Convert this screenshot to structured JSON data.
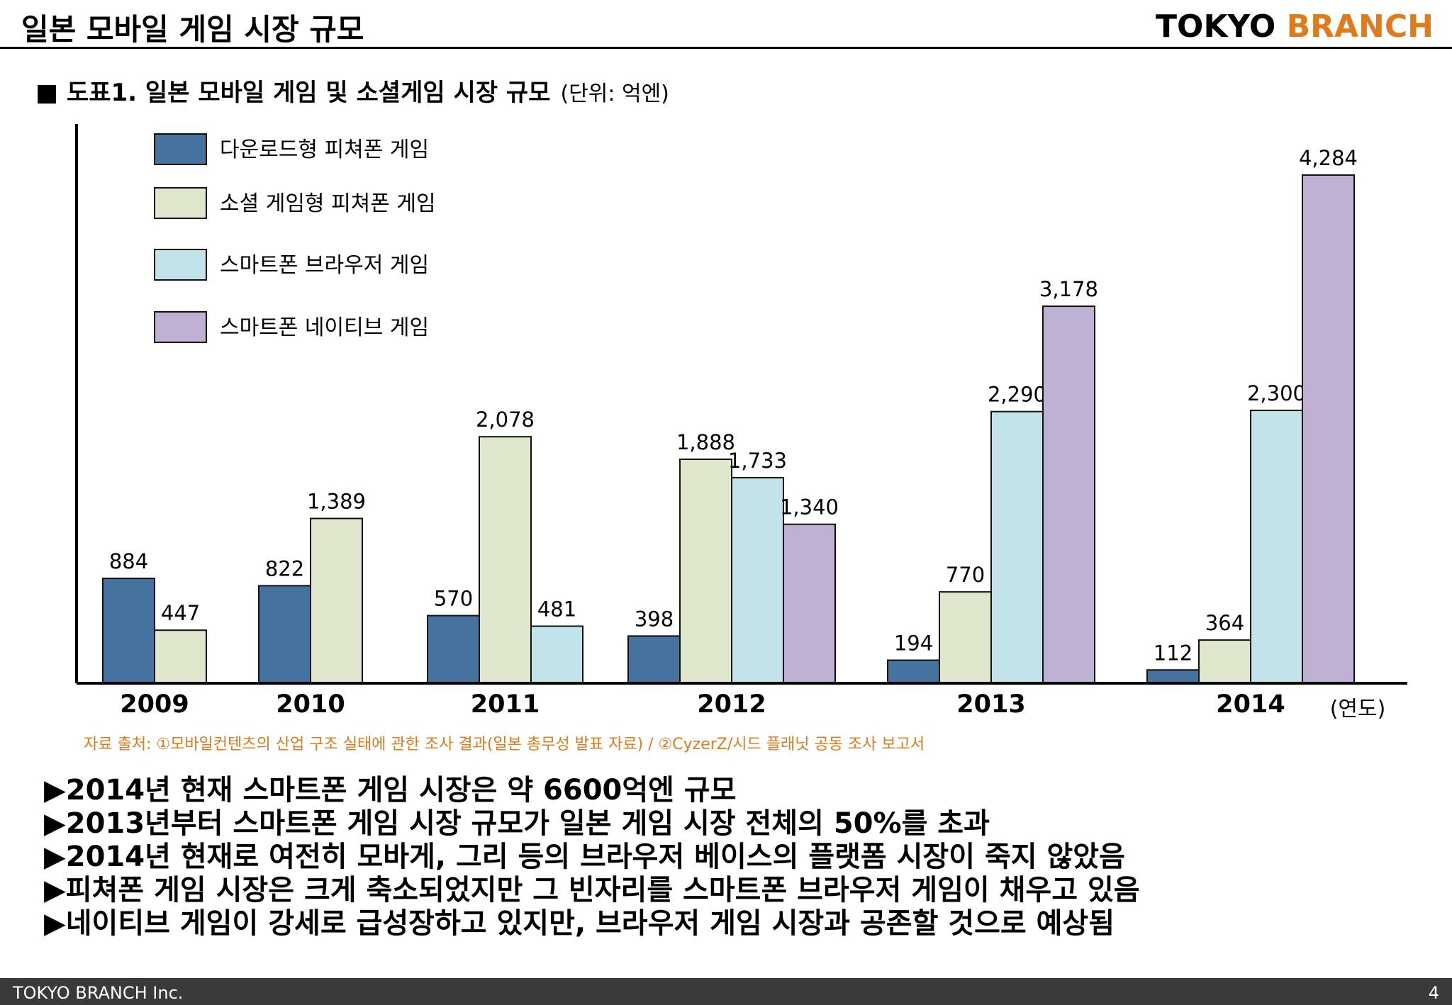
{
  "header": {
    "title": "일본 모바일 게임 시장 규모",
    "brand_part1": "TOKYO",
    "brand_part2": "BRANCH"
  },
  "figure": {
    "title": "■ 도표1. 일본 모바일 게임 및 소셜게임 시장 규모",
    "unit": "(단위: 억엔)"
  },
  "chart_data": {
    "type": "bar",
    "categories": [
      "2009",
      "2010",
      "2011",
      "2012",
      "2013",
      "2014"
    ],
    "x_unit_label": "(연도)",
    "series": [
      {
        "name": "다운로드형 피쳐폰 게임",
        "color": "#4672a0",
        "values": [
          884,
          822,
          570,
          398,
          194,
          112
        ],
        "labels": [
          "884",
          "822",
          "570",
          "398",
          "194",
          "112"
        ]
      },
      {
        "name": "소셜 게임형 피쳐폰 게임",
        "color": "#dfe7cc",
        "values": [
          447,
          1389,
          2078,
          1888,
          770,
          364
        ],
        "labels": [
          "447",
          "1,389",
          "2,078",
          "1,888",
          "770",
          "364"
        ]
      },
      {
        "name": "스마트폰 브라우저 게임",
        "color": "#c3e3ea",
        "values": [
          null,
          null,
          481,
          1733,
          2290,
          2300
        ],
        "labels": [
          null,
          null,
          "481",
          "1,733",
          "2,290",
          "2,300"
        ]
      },
      {
        "name": "스마트폰 네이티브 게임",
        "color": "#bfb1d4",
        "values": [
          null,
          null,
          null,
          1340,
          3178,
          4284
        ],
        "labels": [
          null,
          null,
          null,
          "1,340",
          "3,178",
          "4,284"
        ]
      }
    ],
    "ylim": [
      0,
      4750
    ],
    "grid": false,
    "legend_position": "top-left"
  },
  "source_note": "자료 출처: ①모바일컨텐츠의 산업 구조 실태에 관한 조사 결과(일본 총무성 발표 자료) / ②CyzerZ/시드 플래닛 공동 조사 보고서",
  "bullets": [
    "▶2014년 현재 스마트폰 게임 시장은 약 6600억엔 규모",
    "▶2013년부터 스마트폰 게임 시장 규모가 일본 게임 시장 전체의 50%를 초과",
    "▶2014년 현재로 여전히 모바게, 그리 등의 브라우저 베이스의 플랫폼 시장이 죽지 않았음",
    "▶피쳐폰 게임 시장은 크게 축소되었지만 그 빈자리를 스마트폰 브라우저 게임이 채우고 있음",
    "▶네이티브 게임이 강세로 급성장하고 있지만, 브라우저 게임 시장과 공존할 것으로 예상됨"
  ],
  "footer": {
    "company": "TOKYO BRANCH Inc.",
    "page": "4"
  }
}
